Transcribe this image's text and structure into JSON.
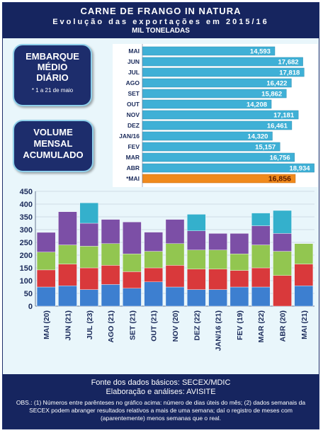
{
  "header": {
    "title": "CARNE DE FRANGO IN NATURA",
    "subtitle": "Evolução das exportações em 2015/16",
    "unit": "MIL TONELADAS"
  },
  "callouts": {
    "daily": {
      "line1": "EMBARQUE",
      "line2": "MÉDIO",
      "line3": "DIÁRIO",
      "note": "* 1 a 21 de maio"
    },
    "monthly": {
      "line1": "VOLUME",
      "line2": "MENSAL",
      "line3": "ACUMULADO"
    }
  },
  "chart_data": [
    {
      "type": "bar",
      "orientation": "horizontal",
      "categories": [
        "MAI",
        "JUN",
        "JUL",
        "AGO",
        "SET",
        "OUT",
        "NOV",
        "DEZ",
        "JAN/16",
        "FEV",
        "MAR",
        "ABR",
        "*MAI"
      ],
      "values_labels": [
        "14,593",
        "17,682",
        "17,818",
        "16,422",
        "15,862",
        "14,208",
        "17,181",
        "16,461",
        "14,320",
        "15,157",
        "16,756",
        "18,934",
        "16,856"
      ],
      "values": [
        14.593,
        17.682,
        17.818,
        16.422,
        15.862,
        14.208,
        17.181,
        16.461,
        14.32,
        15.157,
        16.756,
        18.934,
        16.856
      ],
      "colors": {
        "bar": "#3fb0d6",
        "highlight": "#f08a1c"
      },
      "highlight_index": 12
    },
    {
      "type": "bar",
      "stacked": true,
      "categories": [
        "MAI (20)",
        "JUN (21)",
        "JUL (23)",
        "AGO (21)",
        "SET (21)",
        "OUT (21)",
        "NOV (20)",
        "DEZ (22)",
        "JAN/16 (21)",
        "FEV (19)",
        "MAR (22)",
        "ABR (20)",
        "MAI (21)"
      ],
      "series": [
        {
          "color": "#3d7fd0",
          "values": [
            75,
            80,
            65,
            85,
            70,
            95,
            75,
            65,
            65,
            75,
            75,
            0,
            80
          ]
        },
        {
          "color": "#d9393b",
          "values": [
            67,
            85,
            85,
            75,
            65,
            55,
            85,
            80,
            80,
            65,
            75,
            120,
            85
          ]
        },
        {
          "color": "#92c650",
          "values": [
            70,
            75,
            85,
            85,
            70,
            65,
            85,
            75,
            75,
            65,
            90,
            95,
            80
          ]
        },
        {
          "color": "#7c4fa6",
          "values": [
            77,
            130,
            90,
            95,
            125,
            75,
            95,
            75,
            65,
            80,
            75,
            70,
            0
          ]
        },
        {
          "color": "#34b0cc",
          "values": [
            0,
            0,
            80,
            0,
            0,
            0,
            0,
            65,
            0,
            0,
            50,
            90,
            0
          ]
        }
      ],
      "ylim": [
        0,
        450
      ],
      "yticks": [
        0,
        50,
        100,
        150,
        200,
        250,
        300,
        350,
        400,
        450
      ],
      "grid": true
    }
  ],
  "footer": {
    "source": "Fonte dos dados básicos: SECEX/MDIC",
    "analysis": "Elaboração e análises: AVISITE",
    "obs": "OBS.: (1) Números entre parênteses no gráfico acima: número de dias úteis do mês; (2) dados semanais da SECEX podem abranger resultados relativos a mais de uma semana; daí o registro de meses com (aparentemente) menos semanas que o real."
  }
}
